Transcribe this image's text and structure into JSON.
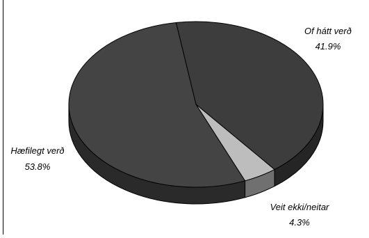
{
  "chart_data": {
    "type": "pie",
    "style": "3d-tilted",
    "categories": [
      "Of hátt verð",
      "Veit ekki/neitar",
      "Hæfilegt verð"
    ],
    "values": [
      41.9,
      4.3,
      53.8
    ],
    "value_labels": [
      "41.9%",
      "4.3%",
      "53.8%"
    ],
    "colors": {
      "Of hátt verð": "#3d3d3d",
      "Veit ekki/neitar": "#bdbdbd",
      "Hæfilegt verð": "#444444"
    },
    "side_colors": {
      "Of hátt verð": "#252525",
      "Veit ekki/neitar": "#707070",
      "Hæfilegt verð": "#2a2a2a"
    },
    "legend": "none",
    "title": ""
  }
}
